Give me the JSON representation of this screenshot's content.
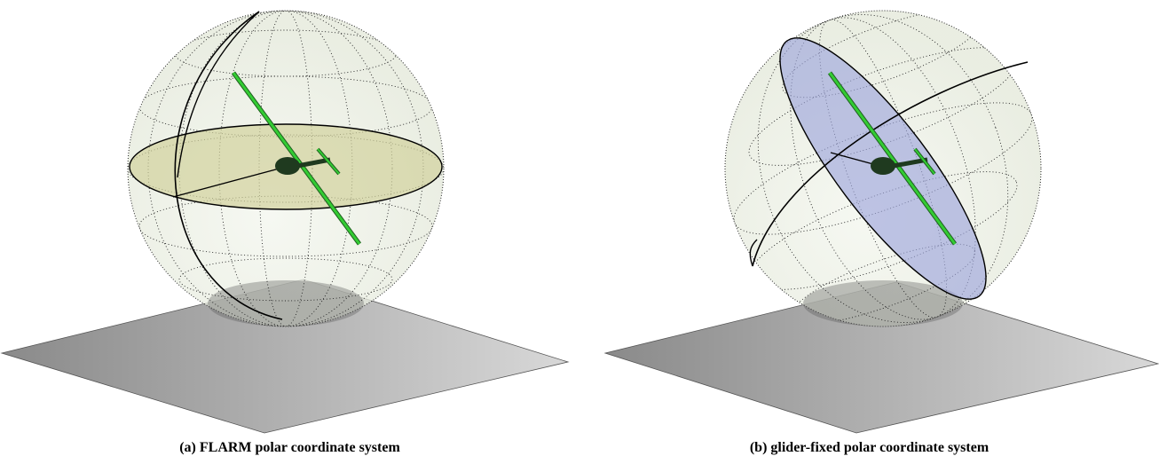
{
  "panels": [
    {
      "id": "a",
      "label": "(a)",
      "title": "FLARM polar coordinate system",
      "plane_fill": "#d2d29c"
    },
    {
      "id": "b",
      "label": "(b)",
      "title": "glider-fixed polar coordinate system",
      "plane_fill": "#9ea6dc"
    }
  ],
  "colors": {
    "ground_dark": "#8a8a8a",
    "ground_light": "#d8d8d8",
    "sphere_fill": "#eef2e6",
    "grid_dots": "#222222",
    "glider_wing": "#33cc33",
    "glider_body": "#1f3a1f"
  }
}
